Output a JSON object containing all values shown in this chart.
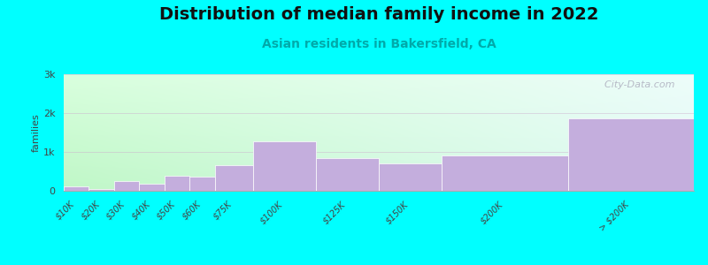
{
  "title": "Distribution of median family income in 2022",
  "subtitle": "Asian residents in Bakersfield, CA",
  "ylabel": "families",
  "background_color": "#00FFFF",
  "bar_color": "#C4AEDD",
  "bar_edge_color": "#FFFFFF",
  "categories": [
    "$10K",
    "$20K",
    "$30K",
    "$40K",
    "$50K",
    "$60K",
    "$75K",
    "$100K",
    "$125K",
    "$150K",
    "$200K",
    "> $200K"
  ],
  "values": [
    120,
    50,
    250,
    175,
    380,
    370,
    650,
    1270,
    830,
    700,
    900,
    1870
  ],
  "bar_edges": [
    0,
    10,
    20,
    30,
    40,
    50,
    60,
    75,
    100,
    125,
    150,
    200,
    250
  ],
  "ylim": [
    0,
    3000
  ],
  "yticks": [
    0,
    1000,
    2000,
    3000
  ],
  "ytick_labels": [
    "0",
    "1k",
    "2k",
    "3k"
  ],
  "plot_bg_color_tl": "#EEFFF0",
  "plot_bg_color_tr": "#F8FFFF",
  "plot_bg_color_bl": "#CCEECC",
  "plot_bg_color_br": "#E8F8F8",
  "watermark": "  City-Data.com",
  "title_fontsize": 14,
  "subtitle_fontsize": 10,
  "subtitle_color": "#00AAAA",
  "ylabel_fontsize": 8
}
